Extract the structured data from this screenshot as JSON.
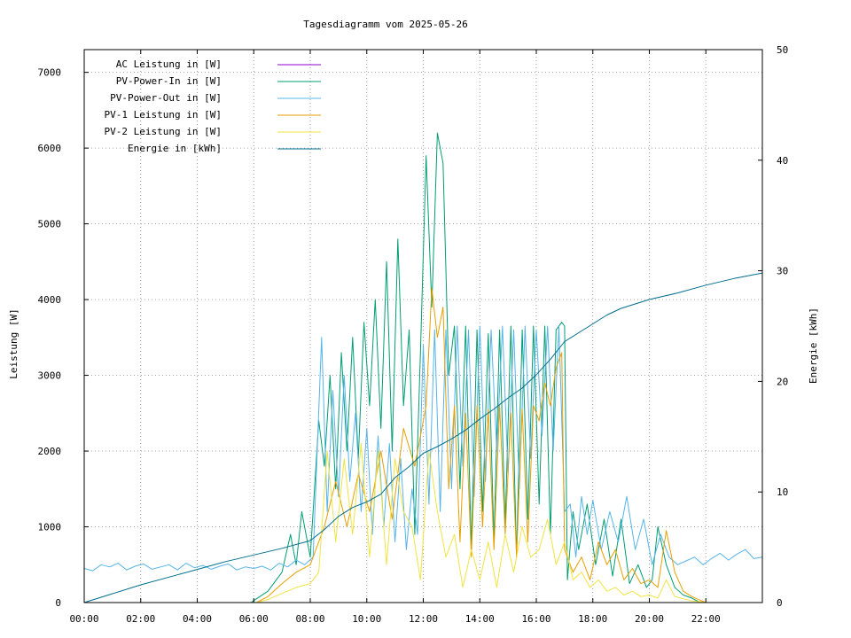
{
  "chart_data": {
    "type": "line",
    "title": "Tagesdiagramm vom 2025-05-26",
    "xlabel": "",
    "ylabel": "Leistung [W]",
    "y2label": "Energie [kWh]",
    "xlim": [
      0,
      24
    ],
    "ylim": [
      0,
      7300
    ],
    "y2lim": [
      0,
      50
    ],
    "xticks": [
      "00:00",
      "02:00",
      "04:00",
      "06:00",
      "08:00",
      "10:00",
      "12:00",
      "14:00",
      "16:00",
      "18:00",
      "20:00",
      "22:00"
    ],
    "yticks": [
      "0",
      "1000",
      "2000",
      "3000",
      "4000",
      "5000",
      "6000",
      "7000"
    ],
    "y2ticks": [
      "0",
      "10",
      "20",
      "30",
      "40",
      "50"
    ],
    "grid": true,
    "legend_position": "top-left",
    "series": [
      {
        "name": "AC Leistung in [W]",
        "color": "#9400d3",
        "axis": "y",
        "x": [],
        "values": []
      },
      {
        "name": "PV-Power-In in [W]",
        "color": "#009e73",
        "axis": "y",
        "x": [
          0,
          5.9,
          6.1,
          6.5,
          7.0,
          7.3,
          7.5,
          7.7,
          8.0,
          8.3,
          8.5,
          8.7,
          8.9,
          9.1,
          9.3,
          9.5,
          9.7,
          9.9,
          10.1,
          10.3,
          10.5,
          10.7,
          10.9,
          11.1,
          11.3,
          11.5,
          11.7,
          11.9,
          12.1,
          12.3,
          12.5,
          12.7,
          12.9,
          13.1,
          13.3,
          13.5,
          13.7,
          13.9,
          14.1,
          14.3,
          14.5,
          14.7,
          14.9,
          15.1,
          15.3,
          15.5,
          15.7,
          15.9,
          16.1,
          16.3,
          16.5,
          16.7,
          16.9,
          17.0,
          17.1,
          17.3,
          17.5,
          17.8,
          18.1,
          18.4,
          18.7,
          19.0,
          19.3,
          19.6,
          19.9,
          20.1,
          20.3,
          20.6,
          20.9,
          21.2,
          21.5,
          21.8,
          22.0,
          24
        ],
        "values": [
          0,
          0,
          50,
          150,
          400,
          900,
          500,
          1200,
          600,
          2400,
          1800,
          3000,
          1500,
          3300,
          2000,
          3500,
          1900,
          3700,
          2600,
          4000,
          2300,
          4500,
          2000,
          4800,
          2600,
          3600,
          900,
          3300,
          5900,
          3900,
          6200,
          5800,
          3000,
          3650,
          1500,
          3650,
          700,
          3600,
          1200,
          3550,
          800,
          3600,
          1000,
          3650,
          600,
          3600,
          1100,
          3650,
          1300,
          3650,
          900,
          3600,
          3700,
          3650,
          300,
          1200,
          700,
          1300,
          500,
          1100,
          350,
          1100,
          250,
          500,
          200,
          300,
          1000,
          500,
          200,
          100,
          60,
          0,
          0,
          0
        ]
      },
      {
        "name": "PV-Power-Out in [W]",
        "color": "#56b4e9",
        "axis": "y",
        "x": [
          0,
          0.3,
          0.6,
          0.9,
          1.2,
          1.5,
          1.8,
          2.1,
          2.4,
          2.7,
          3.0,
          3.3,
          3.6,
          3.9,
          4.2,
          4.5,
          4.8,
          5.1,
          5.4,
          5.7,
          6.0,
          6.3,
          6.6,
          6.9,
          7.2,
          7.5,
          7.8,
          8.1,
          8.4,
          8.6,
          8.8,
          9.0,
          9.2,
          9.4,
          9.6,
          9.8,
          10.0,
          10.2,
          10.4,
          10.6,
          10.8,
          11.0,
          11.2,
          11.4,
          11.6,
          11.8,
          12.0,
          12.2,
          12.4,
          12.6,
          12.8,
          13.0,
          13.2,
          13.4,
          13.6,
          13.8,
          14.0,
          14.2,
          14.4,
          14.6,
          14.8,
          15.0,
          15.2,
          15.4,
          15.6,
          15.8,
          16.0,
          16.2,
          16.4,
          16.6,
          16.8,
          17.0,
          17.2,
          17.4,
          17.6,
          17.8,
          18.0,
          18.3,
          18.6,
          18.9,
          19.2,
          19.5,
          19.8,
          20.1,
          20.4,
          20.7,
          21.0,
          21.3,
          21.6,
          21.9,
          22.2,
          22.5,
          22.8,
          23.1,
          23.4,
          23.7,
          24
        ],
        "values": [
          450,
          420,
          500,
          470,
          520,
          430,
          480,
          510,
          440,
          470,
          500,
          430,
          520,
          460,
          490,
          440,
          480,
          510,
          430,
          470,
          450,
          480,
          430,
          520,
          470,
          560,
          500,
          600,
          3500,
          1200,
          2800,
          1400,
          3000,
          1600,
          2500,
          1200,
          2300,
          900,
          2200,
          1000,
          2100,
          800,
          1900,
          700,
          1500,
          900,
          3400,
          1300,
          3600,
          1200,
          3600,
          1500,
          3650,
          1800,
          3600,
          1400,
          3650,
          1600,
          3600,
          2000,
          3650,
          1700,
          3600,
          1500,
          3650,
          1900,
          3600,
          2200,
          3650,
          2000,
          3650,
          1200,
          1300,
          600,
          1400,
          900,
          1350,
          700,
          1200,
          800,
          1400,
          700,
          1100,
          500,
          900,
          600,
          500,
          550,
          600,
          500,
          580,
          650,
          560,
          640,
          700,
          580,
          600
        ]
      },
      {
        "name": "PV-1 Leistung in [W]",
        "color": "#e69f00",
        "axis": "y",
        "x": [
          0,
          6.1,
          6.5,
          7.0,
          7.5,
          8.0,
          8.5,
          8.9,
          9.3,
          9.7,
          10.1,
          10.5,
          10.9,
          11.3,
          11.7,
          12.1,
          12.3,
          12.5,
          12.7,
          12.9,
          13.1,
          13.3,
          13.5,
          13.7,
          13.9,
          14.1,
          14.3,
          14.5,
          14.7,
          14.9,
          15.1,
          15.3,
          15.5,
          15.7,
          15.9,
          16.1,
          16.3,
          16.5,
          16.7,
          16.9,
          17.0,
          17.3,
          17.6,
          17.9,
          18.2,
          18.5,
          18.8,
          19.1,
          19.4,
          19.7,
          20.0,
          20.3,
          20.6,
          20.9,
          21.2,
          21.5,
          21.8,
          22.0,
          24
        ],
        "values": [
          0,
          0,
          80,
          250,
          400,
          500,
          1000,
          1600,
          1000,
          1700,
          1200,
          2000,
          1100,
          2300,
          1800,
          2600,
          4150,
          3500,
          3900,
          1500,
          2600,
          800,
          2500,
          600,
          2600,
          1000,
          2550,
          700,
          2600,
          900,
          2500,
          600,
          2550,
          800,
          2600,
          2400,
          2900,
          2600,
          3100,
          3300,
          700,
          400,
          600,
          300,
          800,
          500,
          700,
          300,
          450,
          250,
          300,
          200,
          950,
          400,
          150,
          80,
          30,
          0,
          0
        ]
      },
      {
        "name": "PV-2 Leistung in [W]",
        "color": "#f0e442",
        "axis": "y",
        "x": [
          0,
          6.1,
          6.5,
          7.0,
          7.5,
          8.0,
          8.3,
          8.6,
          8.9,
          9.2,
          9.5,
          9.8,
          10.1,
          10.4,
          10.7,
          11.0,
          11.3,
          11.6,
          11.9,
          12.2,
          12.5,
          12.8,
          13.1,
          13.4,
          13.7,
          14.0,
          14.3,
          14.6,
          14.9,
          15.2,
          15.5,
          15.8,
          16.1,
          16.4,
          16.7,
          17.0,
          17.3,
          17.6,
          17.9,
          18.2,
          18.5,
          18.8,
          19.1,
          19.4,
          19.7,
          20.0,
          20.3,
          20.6,
          20.9,
          21.2,
          21.5,
          21.8,
          22.0,
          24
        ],
        "values": [
          0,
          0,
          40,
          120,
          200,
          250,
          400,
          2000,
          800,
          1900,
          900,
          2100,
          600,
          2000,
          500,
          1900,
          1200,
          1000,
          300,
          2000,
          1200,
          600,
          900,
          200,
          700,
          300,
          800,
          200,
          900,
          400,
          1000,
          600,
          700,
          1100,
          500,
          800,
          300,
          400,
          200,
          300,
          150,
          200,
          100,
          150,
          80,
          100,
          60,
          300,
          80,
          50,
          20,
          10,
          0,
          0
        ]
      },
      {
        "name": "Energie in [kWh]",
        "color": "#006e8c",
        "axis": "y2",
        "x": [
          0,
          1,
          2,
          3,
          4,
          5,
          6,
          7,
          8,
          8.5,
          9,
          9.5,
          10,
          10.5,
          11,
          11.5,
          12,
          12.5,
          13,
          13.5,
          14,
          14.5,
          15,
          15.5,
          16,
          16.5,
          17,
          17.5,
          18,
          18.5,
          19,
          19.5,
          20,
          21,
          22,
          23,
          24
        ],
        "values": [
          0,
          0.8,
          1.6,
          2.3,
          3.0,
          3.7,
          4.3,
          4.9,
          5.6,
          6.6,
          7.8,
          8.6,
          9.1,
          9.8,
          11.3,
          12.3,
          13.5,
          14.1,
          14.8,
          15.6,
          16.6,
          17.5,
          18.5,
          19.4,
          20.6,
          22.0,
          23.6,
          24.4,
          25.2,
          26.0,
          26.6,
          27.0,
          27.4,
          28.0,
          28.7,
          29.3,
          29.8
        ]
      }
    ]
  }
}
